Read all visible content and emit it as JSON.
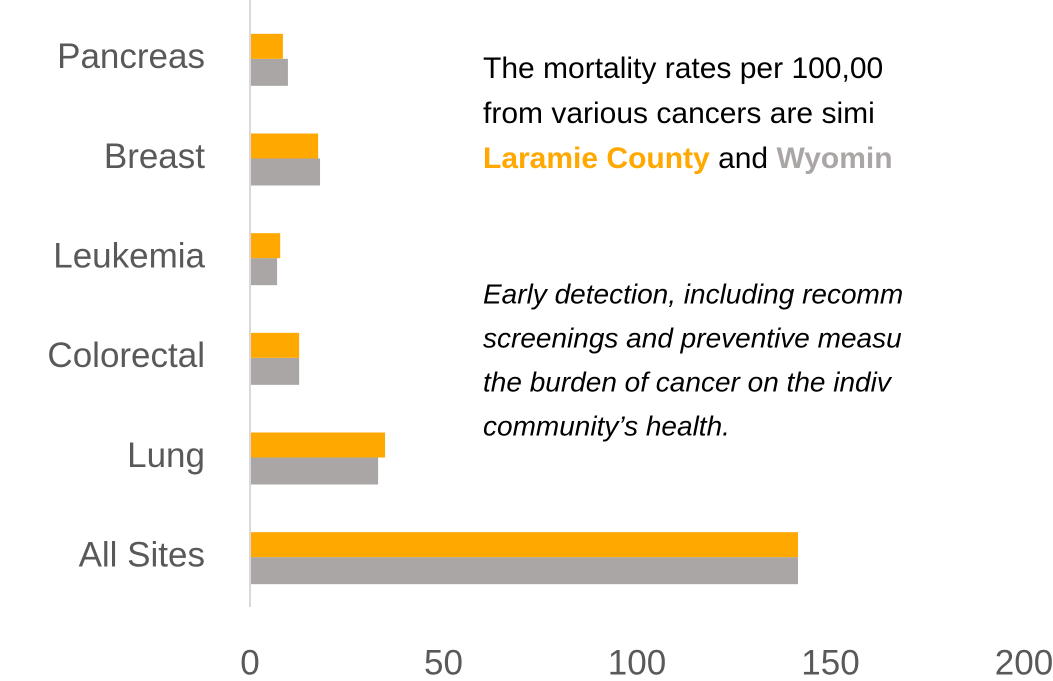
{
  "chart_data": {
    "type": "bar",
    "horizontal": true,
    "categories": [
      "Pancreas",
      "Breast",
      "Leukemia",
      "Colorectal",
      "Lung",
      "All Sites"
    ],
    "series": [
      {
        "color": "#ffa800",
        "values": [
          8.5,
          17.6,
          7.8,
          12.7,
          34.9,
          141.6
        ]
      },
      {
        "color": "#aba6a6",
        "values": [
          9.8,
          18.1,
          7.0,
          12.7,
          33.1,
          141.6
        ]
      }
    ],
    "xlim": [
      0,
      200
    ],
    "xticks": [
      0,
      50,
      100,
      150,
      200
    ],
    "grid": false,
    "annotation": {
      "lines": [
        "The mortality rates per 100,00",
        "from various cancers are simi"
      ],
      "highlight": [
        "Laramie County",
        "and",
        "Wyomin"
      ],
      "italic_lines": [
        "Early detection, including recomm",
        "screenings and preventive measu",
        "the burden of cancer on the indiv",
        "community’s health."
      ]
    }
  }
}
